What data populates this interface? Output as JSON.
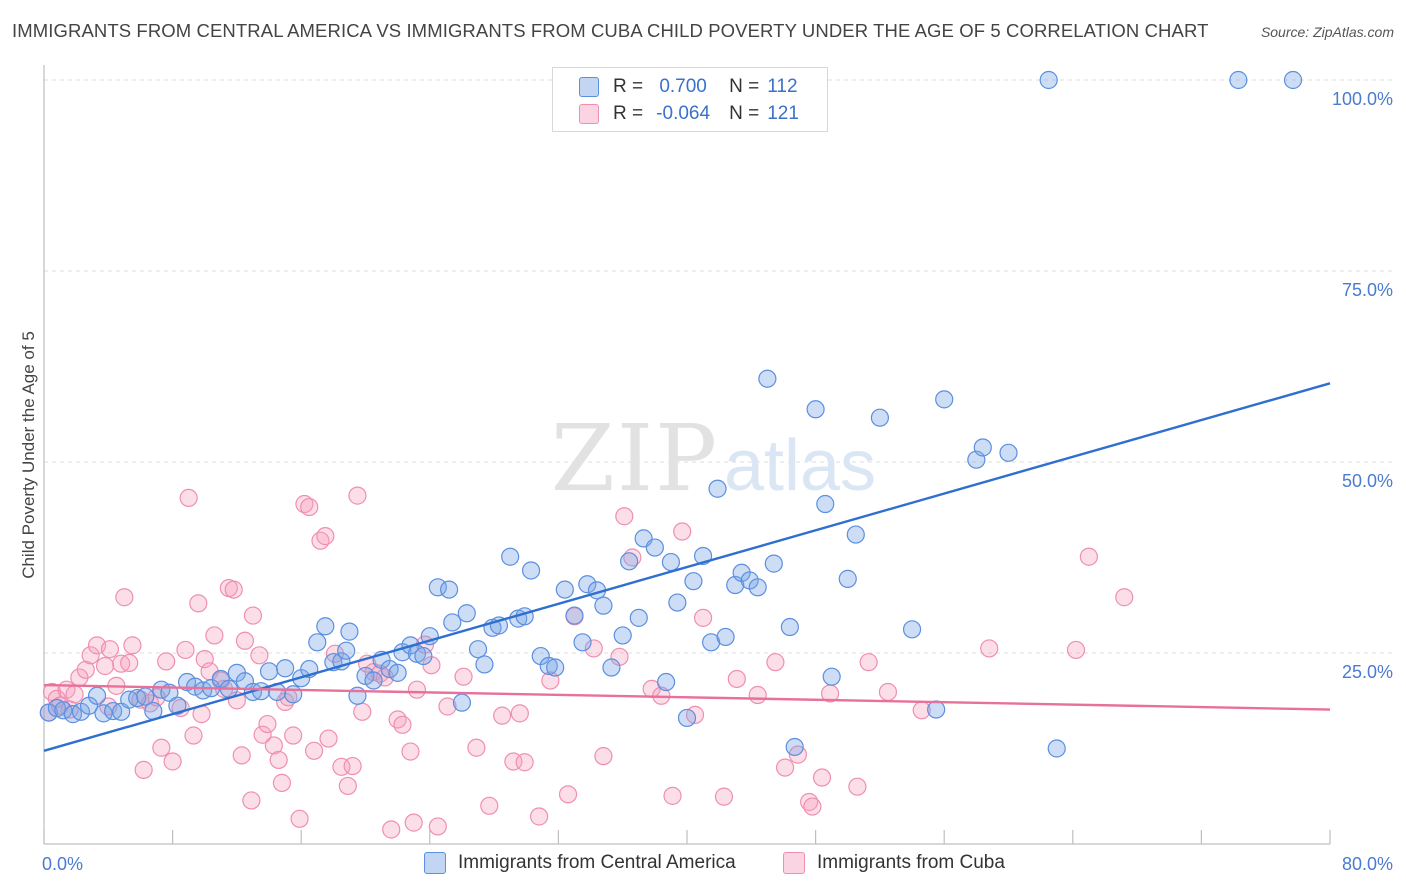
{
  "header": {
    "title": "IMMIGRANTS FROM CENTRAL AMERICA VS IMMIGRANTS FROM CUBA CHILD POVERTY UNDER THE AGE OF 5 CORRELATION CHART",
    "source": "Source: ZipAtlas.com"
  },
  "watermark": {
    "zip": "ZIP",
    "atlas": "atlas"
  },
  "legend": {
    "rows": [
      {
        "r_label": "R =",
        "r_value": "0.700",
        "n_label": "N =",
        "n_value": "112"
      },
      {
        "r_label": "R =",
        "r_value": "-0.064",
        "n_label": "N =",
        "n_value": "121"
      }
    ]
  },
  "bottom_legend": {
    "series1": "Immigrants from Central America",
    "series2": "Immigrants from Cuba"
  },
  "colors": {
    "blue": "#5b8fe0",
    "blue_fill": "rgba(120,165,230,0.38)",
    "blue_line": "#2e6fd0",
    "pink": "#ef8fb0",
    "pink_fill": "rgba(245,160,190,0.35)",
    "pink_line": "#e8709a",
    "axis_text": "#4a7bd0"
  },
  "chart_data": {
    "type": "scatter",
    "title": "IMMIGRANTS FROM CENTRAL AMERICA VS IMMIGRANTS FROM CUBA CHILD POVERTY UNDER THE AGE OF 5 CORRELATION CHART",
    "xlabel": "",
    "ylabel": "Child Poverty Under the Age of 5",
    "xlim": [
      0,
      80
    ],
    "ylim": [
      0,
      102
    ],
    "x_tick_labels": [
      "0.0%",
      "80.0%"
    ],
    "y_tick_labels": [
      "25.0%",
      "50.0%",
      "75.0%",
      "100.0%"
    ],
    "y_ticks": [
      25,
      50,
      75,
      100
    ],
    "grid": true,
    "legend_position": "top-center",
    "series": [
      {
        "name": "Immigrants from Central America",
        "color": "#5b8fe0",
        "trend": {
          "x": [
            0,
            80
          ],
          "y": [
            12.2,
            60.3
          ]
        },
        "points": [
          [
            0.3,
            17.2
          ],
          [
            0.8,
            17.8
          ],
          [
            1.2,
            17.5
          ],
          [
            1.8,
            17.0
          ],
          [
            2.3,
            17.3
          ],
          [
            2.8,
            18.1
          ],
          [
            3.3,
            19.4
          ],
          [
            3.7,
            17.1
          ],
          [
            4.3,
            17.4
          ],
          [
            4.8,
            17.3
          ],
          [
            5.3,
            18.9
          ],
          [
            5.8,
            19.1
          ],
          [
            6.3,
            19.3
          ],
          [
            6.8,
            17.4
          ],
          [
            7.3,
            20.2
          ],
          [
            7.8,
            19.8
          ],
          [
            8.3,
            18.1
          ],
          [
            8.9,
            21.2
          ],
          [
            9.4,
            20.6
          ],
          [
            9.9,
            20.1
          ],
          [
            10.4,
            20.4
          ],
          [
            11.0,
            21.6
          ],
          [
            11.5,
            20.3
          ],
          [
            12.0,
            22.4
          ],
          [
            12.5,
            21.3
          ],
          [
            13.0,
            19.9
          ],
          [
            13.5,
            20.0
          ],
          [
            14.0,
            22.6
          ],
          [
            14.5,
            19.9
          ],
          [
            15.0,
            23.0
          ],
          [
            15.5,
            19.6
          ],
          [
            16.0,
            21.7
          ],
          [
            16.5,
            22.9
          ],
          [
            17.0,
            26.4
          ],
          [
            17.5,
            28.5
          ],
          [
            18.0,
            23.8
          ],
          [
            18.5,
            23.9
          ],
          [
            18.8,
            25.3
          ],
          [
            19.0,
            27.8
          ],
          [
            19.5,
            19.4
          ],
          [
            20.0,
            22.0
          ],
          [
            20.5,
            21.4
          ],
          [
            21.0,
            24.1
          ],
          [
            21.5,
            22.9
          ],
          [
            22.0,
            22.4
          ],
          [
            22.3,
            25.1
          ],
          [
            22.8,
            26.0
          ],
          [
            23.2,
            24.9
          ],
          [
            23.6,
            24.6
          ],
          [
            24.0,
            27.2
          ],
          [
            24.5,
            33.6
          ],
          [
            25.2,
            33.3
          ],
          [
            25.4,
            29.0
          ],
          [
            26.0,
            18.5
          ],
          [
            26.3,
            30.2
          ],
          [
            27.0,
            25.5
          ],
          [
            27.4,
            23.5
          ],
          [
            27.9,
            28.3
          ],
          [
            28.3,
            28.6
          ],
          [
            29.0,
            37.6
          ],
          [
            29.5,
            29.5
          ],
          [
            29.9,
            29.8
          ],
          [
            30.3,
            35.8
          ],
          [
            30.9,
            24.6
          ],
          [
            31.4,
            23.3
          ],
          [
            31.8,
            23.1
          ],
          [
            32.4,
            33.3
          ],
          [
            33.0,
            29.9
          ],
          [
            33.5,
            26.4
          ],
          [
            33.8,
            34.0
          ],
          [
            34.4,
            33.2
          ],
          [
            34.8,
            31.2
          ],
          [
            35.3,
            23.1
          ],
          [
            36.0,
            27.3
          ],
          [
            36.4,
            37.0
          ],
          [
            37.0,
            29.6
          ],
          [
            37.3,
            40.0
          ],
          [
            38.0,
            38.8
          ],
          [
            38.7,
            21.2
          ],
          [
            39.0,
            36.9
          ],
          [
            39.4,
            31.6
          ],
          [
            40.0,
            16.5
          ],
          [
            40.4,
            34.4
          ],
          [
            41.0,
            37.7
          ],
          [
            41.5,
            26.4
          ],
          [
            41.9,
            46.5
          ],
          [
            42.4,
            27.1
          ],
          [
            43.0,
            33.9
          ],
          [
            43.4,
            35.5
          ],
          [
            43.9,
            34.5
          ],
          [
            44.4,
            33.6
          ],
          [
            45.0,
            60.9
          ],
          [
            45.4,
            36.7
          ],
          [
            46.4,
            28.4
          ],
          [
            46.7,
            12.7
          ],
          [
            48.0,
            56.9
          ],
          [
            48.6,
            44.5
          ],
          [
            49.0,
            21.9
          ],
          [
            50.0,
            34.7
          ],
          [
            50.5,
            40.5
          ],
          [
            52.0,
            55.8
          ],
          [
            54.0,
            28.1
          ],
          [
            55.5,
            17.6
          ],
          [
            56.0,
            58.2
          ],
          [
            58.0,
            50.3
          ],
          [
            58.4,
            51.9
          ],
          [
            60.0,
            51.2
          ],
          [
            63.0,
            12.5
          ],
          [
            62.5,
            100.0
          ],
          [
            74.3,
            100.0
          ],
          [
            77.7,
            100.0
          ]
        ]
      },
      {
        "name": "Immigrants from Cuba",
        "color": "#ef8fb0",
        "trend": {
          "x": [
            0,
            80
          ],
          "y": [
            20.8,
            17.6
          ]
        },
        "points": [
          [
            0.3,
            17.2
          ],
          [
            0.5,
            19.9
          ],
          [
            0.8,
            19.0
          ],
          [
            1.0,
            18.1
          ],
          [
            1.4,
            20.2
          ],
          [
            1.6,
            17.6
          ],
          [
            1.9,
            19.6
          ],
          [
            2.2,
            21.8
          ],
          [
            2.6,
            22.8
          ],
          [
            2.9,
            24.7
          ],
          [
            3.3,
            26.0
          ],
          [
            3.8,
            23.3
          ],
          [
            4.1,
            25.5
          ],
          [
            4.5,
            20.7
          ],
          [
            4.8,
            23.6
          ],
          [
            5.0,
            32.3
          ],
          [
            5.3,
            23.7
          ],
          [
            5.5,
            26.0
          ],
          [
            6.0,
            18.9
          ],
          [
            6.2,
            9.7
          ],
          [
            6.6,
            18.4
          ],
          [
            7.0,
            19.2
          ],
          [
            7.3,
            12.6
          ],
          [
            7.6,
            23.9
          ],
          [
            8.0,
            10.8
          ],
          [
            8.5,
            17.8
          ],
          [
            8.8,
            25.4
          ],
          [
            9.0,
            45.3
          ],
          [
            9.3,
            14.2
          ],
          [
            9.6,
            31.5
          ],
          [
            10.0,
            24.2
          ],
          [
            10.3,
            22.6
          ],
          [
            10.6,
            27.3
          ],
          [
            11.0,
            21.4
          ],
          [
            11.2,
            20.3
          ],
          [
            11.5,
            33.5
          ],
          [
            11.8,
            33.3
          ],
          [
            12.0,
            18.8
          ],
          [
            12.3,
            11.6
          ],
          [
            12.5,
            26.6
          ],
          [
            12.9,
            5.7
          ],
          [
            13.0,
            29.9
          ],
          [
            13.4,
            24.7
          ],
          [
            13.6,
            14.3
          ],
          [
            13.9,
            15.7
          ],
          [
            14.3,
            12.9
          ],
          [
            14.6,
            11.0
          ],
          [
            14.8,
            8.0
          ],
          [
            15.0,
            18.6
          ],
          [
            15.2,
            19.2
          ],
          [
            15.5,
            14.2
          ],
          [
            15.9,
            3.3
          ],
          [
            16.2,
            44.5
          ],
          [
            16.5,
            44.1
          ],
          [
            16.8,
            12.2
          ],
          [
            17.2,
            39.7
          ],
          [
            17.5,
            40.3
          ],
          [
            17.7,
            13.8
          ],
          [
            18.1,
            24.9
          ],
          [
            18.5,
            10.1
          ],
          [
            18.9,
            7.6
          ],
          [
            19.2,
            10.2
          ],
          [
            19.5,
            45.6
          ],
          [
            19.8,
            17.3
          ],
          [
            20.1,
            23.6
          ],
          [
            20.5,
            22.5
          ],
          [
            20.9,
            22.3
          ],
          [
            21.2,
            21.8
          ],
          [
            21.6,
            1.9
          ],
          [
            22.0,
            16.3
          ],
          [
            22.3,
            15.6
          ],
          [
            22.8,
            12.1
          ],
          [
            23.0,
            2.8
          ],
          [
            23.2,
            20.2
          ],
          [
            23.7,
            26.1
          ],
          [
            24.1,
            23.4
          ],
          [
            24.5,
            2.3
          ],
          [
            25.1,
            18.0
          ],
          [
            26.1,
            21.9
          ],
          [
            26.9,
            12.6
          ],
          [
            27.7,
            5.0
          ],
          [
            28.5,
            16.8
          ],
          [
            29.2,
            10.8
          ],
          [
            29.6,
            17.1
          ],
          [
            29.9,
            10.7
          ],
          [
            30.8,
            3.6
          ],
          [
            31.5,
            21.4
          ],
          [
            32.6,
            6.5
          ],
          [
            33.0,
            29.8
          ],
          [
            34.2,
            25.6
          ],
          [
            34.8,
            11.5
          ],
          [
            35.8,
            24.5
          ],
          [
            36.1,
            42.9
          ],
          [
            36.6,
            37.5
          ],
          [
            37.8,
            20.3
          ],
          [
            38.4,
            19.4
          ],
          [
            39.1,
            6.3
          ],
          [
            39.7,
            40.9
          ],
          [
            40.5,
            16.9
          ],
          [
            41.0,
            29.6
          ],
          [
            42.3,
            6.2
          ],
          [
            43.1,
            21.6
          ],
          [
            44.4,
            19.5
          ],
          [
            45.5,
            23.8
          ],
          [
            46.1,
            10.0
          ],
          [
            46.9,
            11.7
          ],
          [
            47.6,
            5.5
          ],
          [
            48.4,
            8.7
          ],
          [
            48.9,
            19.7
          ],
          [
            50.6,
            7.5
          ],
          [
            51.3,
            23.8
          ],
          [
            52.5,
            19.9
          ],
          [
            54.6,
            17.5
          ],
          [
            58.8,
            25.6
          ],
          [
            64.2,
            25.4
          ],
          [
            65.0,
            37.6
          ],
          [
            67.2,
            32.3
          ],
          [
            47.8,
            4.9
          ],
          [
            4.0,
            18.0
          ],
          [
            9.8,
            17.0
          ]
        ]
      }
    ]
  }
}
